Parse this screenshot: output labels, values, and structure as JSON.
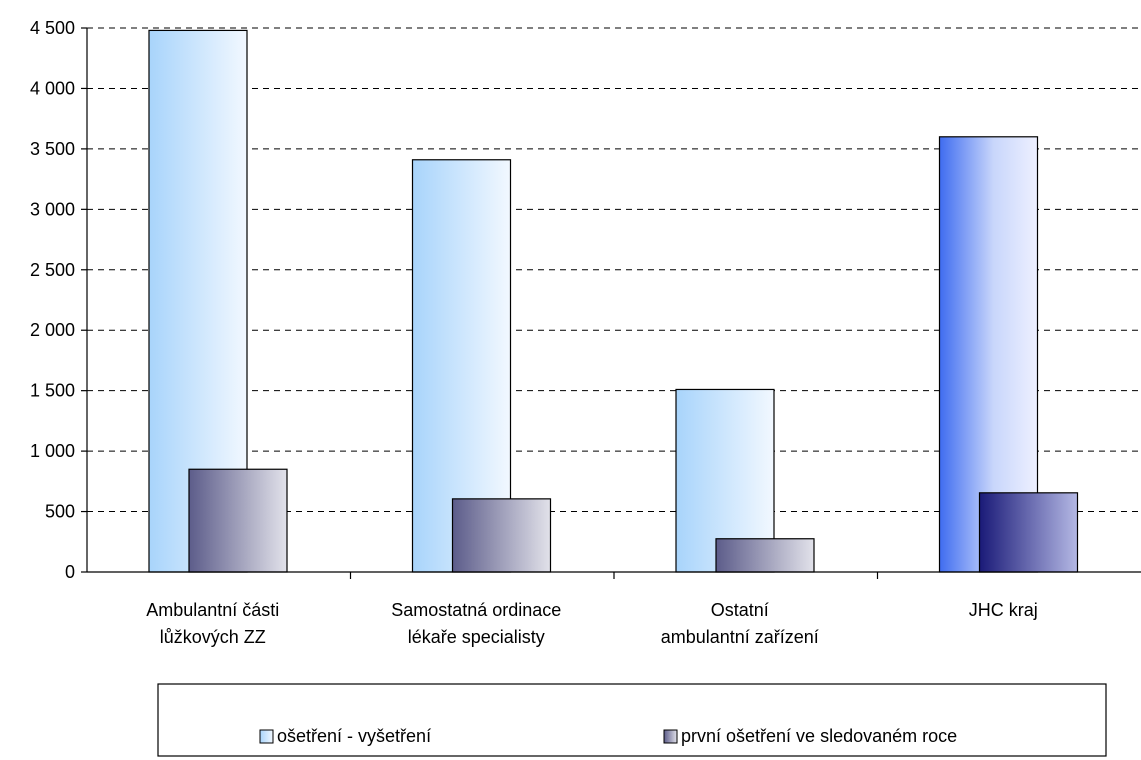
{
  "chart_data": {
    "type": "bar",
    "categories": [
      [
        "Ambulantní části",
        "lůžkových ZZ"
      ],
      [
        "Samostatná ordinace",
        "lékaře specialisty"
      ],
      [
        "Ostatní",
        "ambulantní zařízení"
      ],
      [
        "JHC kraj"
      ]
    ],
    "series": [
      {
        "name": "ošetření - vyšetření",
        "values": [
          4480,
          3410,
          1510,
          3600
        ]
      },
      {
        "name": "první ošetření ve sledovaném roce",
        "values": [
          850,
          605,
          275,
          655
        ]
      }
    ],
    "ylim": [
      0,
      4500
    ],
    "yticks": [
      "0",
      "500",
      "1 000",
      "1 500",
      "2 000",
      "2 500",
      "3 000",
      "3 500",
      "4 000",
      "4 500"
    ],
    "ytick_values": [
      0,
      500,
      1000,
      1500,
      2000,
      2500,
      3000,
      3500,
      4000,
      4500
    ],
    "grid": "dashed horizontal",
    "legend_position": "bottom"
  },
  "colors": {
    "series1_light_left": "#a8d4fb",
    "series1_light_right": "#f2f8ff",
    "series1_strong_left": "#3f6cf0",
    "series1_strong_right": "#eef0ff",
    "series2_left": "#5c5c8a",
    "series2_right": "#e2e2ea",
    "series2_strong_left": "#1a1a78",
    "series2_strong_right": "#b4b8e4"
  }
}
